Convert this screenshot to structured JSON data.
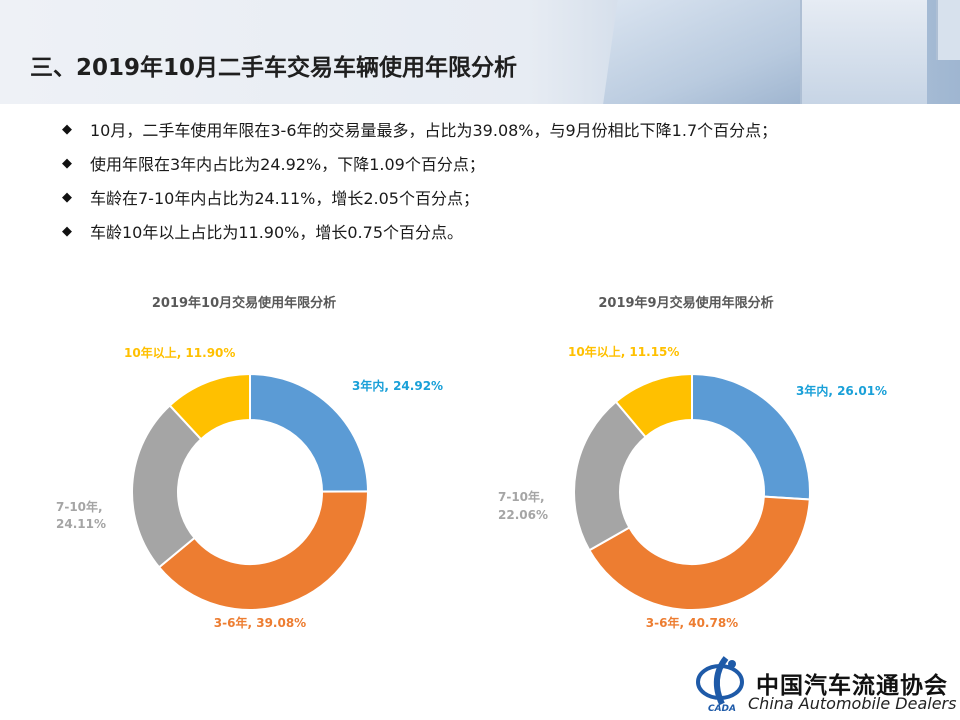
{
  "page": {
    "title": "三、2019年10月二手车交易车辆使用年限分析"
  },
  "bullets": [
    "10月，二手车使用年限在3-6年的交易量最多，占比为39.08%，与9月份相比下降1.7个百分点；",
    "使用年限在3年内占比为24.92%，下降1.09个百分点；",
    "车龄在7-10年内占比为24.11%，增长2.05个百分点；",
    "车龄10年以上占比为11.90%，增长0.75个百分点。"
  ],
  "chart_data": [
    {
      "type": "pie",
      "donut": true,
      "title": "2019年10月交易使用年限分析",
      "categories": [
        "3年内",
        "3-6年",
        "7-10年",
        "10年以上"
      ],
      "values": [
        24.92,
        39.08,
        24.11,
        11.9
      ],
      "labels": [
        "3年内, 24.92%",
        "3-6年, 39.08%",
        "7-10年,",
        "24.11%",
        "10年以上, 11.90%"
      ],
      "colors": [
        "#5b9bd5",
        "#ed7d31",
        "#a5a5a5",
        "#ffc000"
      ],
      "label_colors": [
        "#1aa0d8",
        "#ed7d31",
        "#a5a5a5",
        "#ffc000"
      ]
    },
    {
      "type": "pie",
      "donut": true,
      "title": "2019年9月交易使用年限分析",
      "categories": [
        "3年内",
        "3-6年",
        "7-10年",
        "10年以上"
      ],
      "values": [
        26.01,
        40.78,
        22.06,
        11.15
      ],
      "labels": [
        "3年内, 26.01%",
        "3-6年, 40.78%",
        "7-10年,",
        "22.06%",
        "10年以上, 11.15%"
      ],
      "colors": [
        "#5b9bd5",
        "#ed7d31",
        "#a5a5a5",
        "#ffc000"
      ],
      "label_colors": [
        "#1aa0d8",
        "#ed7d31",
        "#a5a5a5",
        "#ffc000"
      ]
    }
  ],
  "footer": {
    "org_cn": "中国汽车流通协会",
    "org_en": "China Automobile Dealers",
    "logo_text": "CADA"
  }
}
